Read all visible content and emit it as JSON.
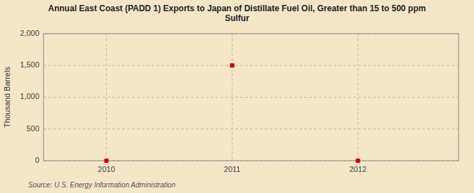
{
  "chart_data": {
    "type": "scatter",
    "title": "Annual East Coast (PADD 1) Exports to Japan of Distillate Fuel Oil, Greater than 15 to 500 ppm\nSulfur",
    "y_label": "Thousand Barrels",
    "source": "Source: U.S. Energy Information Administration",
    "x": [
      2010,
      2011,
      2012
    ],
    "values": [
      0,
      1500,
      0
    ],
    "color": "#cc0000",
    "marker": "square",
    "xlim": [
      2009.5,
      2012.8
    ],
    "xticks": [
      2010,
      2011,
      2012
    ],
    "ylim": [
      0,
      2000
    ],
    "yticks": [
      0,
      500,
      {
        "value": 1000,
        "label": "1,000"
      },
      {
        "value": 1500,
        "label": "1,500"
      },
      {
        "value": 2000,
        "label": "2,000"
      }
    ],
    "grid": true
  }
}
